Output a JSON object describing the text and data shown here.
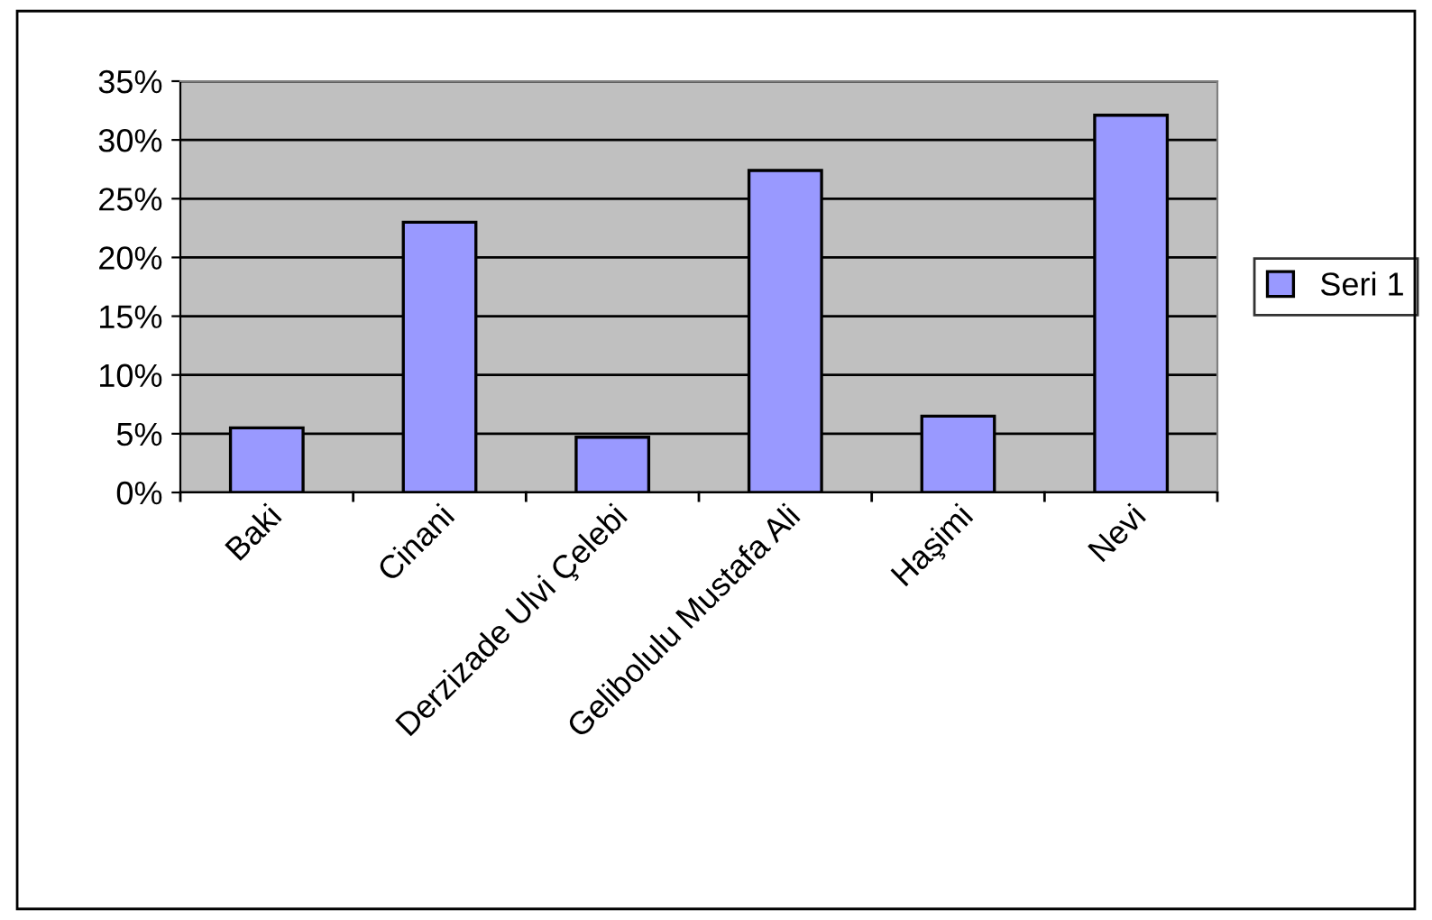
{
  "chart_data": {
    "type": "bar",
    "categories": [
      "Baki",
      "Cinani",
      "Derzizade Ulvi Çelebi",
      "Gelibolulu Mustafa Ali",
      "Haşimi",
      "Nevi"
    ],
    "series": [
      {
        "name": "Seri 1",
        "color": "#9999ff",
        "values": [
          5.5,
          23.0,
          4.7,
          27.4,
          6.5,
          32.1
        ]
      }
    ],
    "ylim": [
      0,
      35
    ],
    "yticks": [
      {
        "value": 0,
        "label": "0%"
      },
      {
        "value": 5,
        "label": "5%"
      },
      {
        "value": 10,
        "label": "10%"
      },
      {
        "value": 15,
        "label": "15%"
      },
      {
        "value": 20,
        "label": "20%"
      },
      {
        "value": 25,
        "label": "25%"
      },
      {
        "value": 30,
        "label": "30%"
      },
      {
        "value": 35,
        "label": "35%"
      }
    ],
    "grid": "y",
    "legend": "right"
  }
}
